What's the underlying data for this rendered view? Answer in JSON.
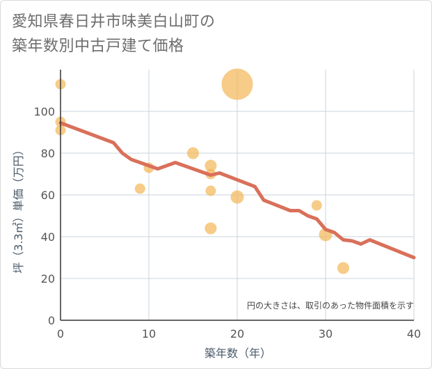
{
  "title": {
    "line1": "愛知県春日井市味美白山町の",
    "line2": "築年数別中古戸建て価格"
  },
  "note": "円の大きさは、取引のあった物件面積を示す",
  "colors": {
    "line": "#d9705a",
    "bubble": "#f3b85a",
    "grid": "#c8d3dc",
    "axis": "#333333"
  },
  "chart_data": {
    "type": "scatter",
    "xlabel": "築年数（年）",
    "ylabel": "坪（3.3㎡）単価（万円）",
    "xlim": [
      0,
      40
    ],
    "ylim": [
      0,
      120
    ],
    "x_ticks": [
      "0",
      "10",
      "20",
      "30",
      "40"
    ],
    "y_ticks": [
      "0",
      "20",
      "40",
      "60",
      "80",
      "100"
    ],
    "grid": true,
    "bubbles": [
      {
        "x": 0,
        "y": 113,
        "size": 1
      },
      {
        "x": 0,
        "y": 95,
        "size": 1
      },
      {
        "x": 0,
        "y": 91,
        "size": 1
      },
      {
        "x": 9,
        "y": 63,
        "size": 1
      },
      {
        "x": 10,
        "y": 73,
        "size": 1
      },
      {
        "x": 15,
        "y": 80,
        "size": 1.3
      },
      {
        "x": 17,
        "y": 74,
        "size": 1.3
      },
      {
        "x": 17,
        "y": 70,
        "size": 1
      },
      {
        "x": 17,
        "y": 62,
        "size": 1
      },
      {
        "x": 17,
        "y": 44,
        "size": 1.3
      },
      {
        "x": 20,
        "y": 113,
        "size": 9
      },
      {
        "x": 20,
        "y": 59,
        "size": 1.6
      },
      {
        "x": 29,
        "y": 55,
        "size": 1
      },
      {
        "x": 30,
        "y": 41,
        "size": 1.6
      },
      {
        "x": 32,
        "y": 25,
        "size": 1.3
      }
    ],
    "trend_line": [
      {
        "x": 0,
        "y": 94.5
      },
      {
        "x": 6,
        "y": 85
      },
      {
        "x": 7,
        "y": 80
      },
      {
        "x": 8,
        "y": 77
      },
      {
        "x": 10,
        "y": 74
      },
      {
        "x": 11,
        "y": 72.5
      },
      {
        "x": 13,
        "y": 75.5
      },
      {
        "x": 17,
        "y": 69.5
      },
      {
        "x": 18,
        "y": 70.5
      },
      {
        "x": 22,
        "y": 64
      },
      {
        "x": 23,
        "y": 57.5
      },
      {
        "x": 26,
        "y": 52.5
      },
      {
        "x": 27,
        "y": 52.5
      },
      {
        "x": 28,
        "y": 50
      },
      {
        "x": 29,
        "y": 48.5
      },
      {
        "x": 30,
        "y": 43.5
      },
      {
        "x": 31,
        "y": 42
      },
      {
        "x": 32,
        "y": 38.5
      },
      {
        "x": 33,
        "y": 38
      },
      {
        "x": 34,
        "y": 36.5
      },
      {
        "x": 35,
        "y": 38.5
      },
      {
        "x": 40,
        "y": 30
      }
    ]
  }
}
